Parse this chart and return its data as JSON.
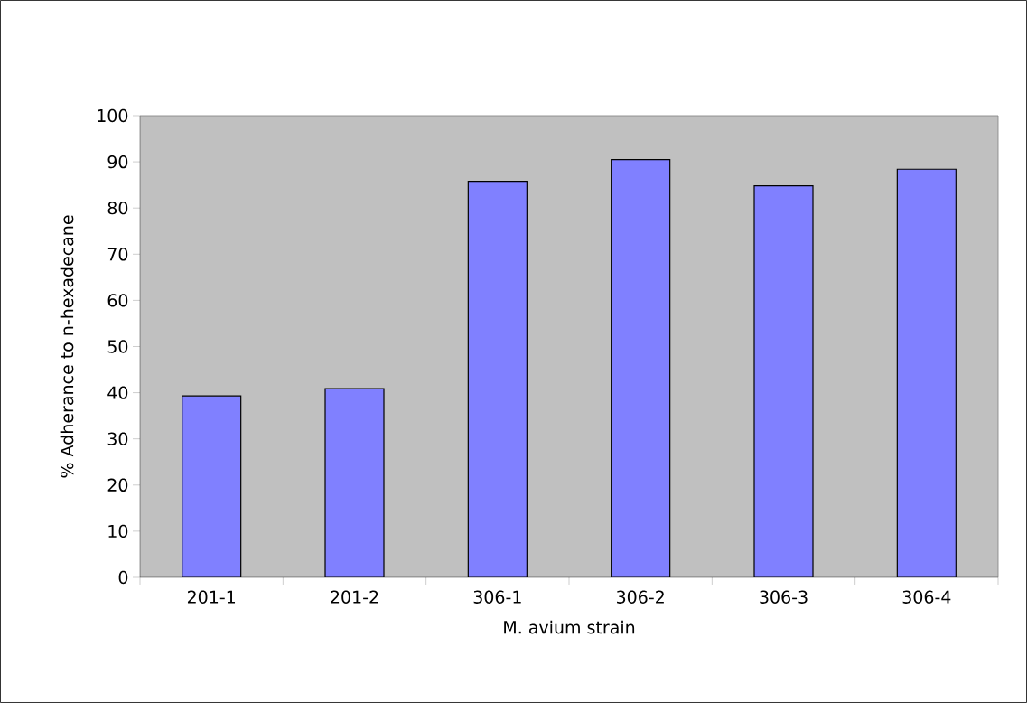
{
  "chart_data": {
    "type": "bar",
    "xlabel": "M. avium strain",
    "ylabel": "% Adherance to n-hexadecane",
    "categories": [
      "201-1",
      "201-2",
      "306-1",
      "306-2",
      "306-3",
      "306-4"
    ],
    "values": [
      39.3,
      40.9,
      85.8,
      90.5,
      84.8,
      88.4
    ],
    "color": "#8080ff",
    "ylim": [
      0,
      100
    ],
    "yticks": [
      0,
      10,
      20,
      30,
      40,
      50,
      60,
      70,
      80,
      90,
      100
    ],
    "grid": false
  }
}
